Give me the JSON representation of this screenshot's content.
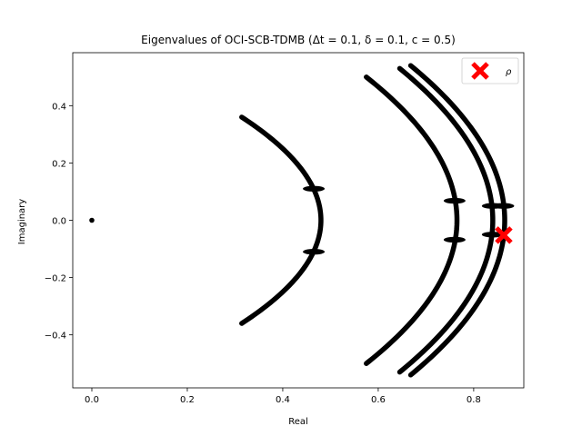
{
  "chart_data": {
    "type": "scatter",
    "title": "Eigenvalues of OCI-SCB-TDMB (Δt = 0.1, δ = 0.1, c = 0.5)",
    "xlabel": "Real",
    "ylabel": "Imaginary",
    "xlim": [
      -0.04,
      0.905
    ],
    "ylim": [
      -0.585,
      0.585
    ],
    "xticks": [
      0.0,
      0.2,
      0.4,
      0.6,
      0.8
    ],
    "xtick_labels": [
      "0.0",
      "0.2",
      "0.4",
      "0.6",
      "0.8"
    ],
    "yticks": [
      -0.4,
      -0.2,
      0.0,
      0.2,
      0.4
    ],
    "ytick_labels": [
      "−0.4",
      "−0.2",
      "0.0",
      "0.2",
      "0.4"
    ],
    "grid": false,
    "legend": {
      "position": "top-right",
      "entries": [
        {
          "label": "ρ",
          "marker": "X",
          "color": "#ff0000"
        }
      ]
    },
    "series": [
      {
        "color": "#000000",
        "points": [
          [
            0.0,
            0.0
          ],
          [
            0.314,
            0.36
          ],
          [
            0.354,
            0.326
          ],
          [
            0.392,
            0.28
          ],
          [
            0.428,
            0.22
          ],
          [
            0.456,
            0.15
          ],
          [
            0.474,
            0.075
          ],
          [
            0.48,
            0.0
          ],
          [
            0.474,
            -0.075
          ],
          [
            0.456,
            -0.15
          ],
          [
            0.428,
            -0.22
          ],
          [
            0.392,
            -0.28
          ],
          [
            0.354,
            -0.326
          ],
          [
            0.314,
            -0.36
          ],
          [
            0.575,
            0.5
          ],
          [
            0.635,
            0.43
          ],
          [
            0.69,
            0.34
          ],
          [
            0.73,
            0.24
          ],
          [
            0.755,
            0.12
          ],
          [
            0.765,
            0.0
          ],
          [
            0.755,
            -0.12
          ],
          [
            0.73,
            -0.24
          ],
          [
            0.69,
            -0.34
          ],
          [
            0.635,
            -0.43
          ],
          [
            0.575,
            -0.5
          ],
          [
            0.645,
            0.53
          ],
          [
            0.71,
            0.45
          ],
          [
            0.765,
            0.35
          ],
          [
            0.805,
            0.24
          ],
          [
            0.83,
            0.12
          ],
          [
            0.84,
            0.0
          ],
          [
            0.83,
            -0.12
          ],
          [
            0.805,
            -0.24
          ],
          [
            0.765,
            -0.35
          ],
          [
            0.71,
            -0.45
          ],
          [
            0.645,
            -0.53
          ],
          [
            0.668,
            0.54
          ],
          [
            0.735,
            0.46
          ],
          [
            0.792,
            0.36
          ],
          [
            0.832,
            0.24
          ],
          [
            0.857,
            0.12
          ],
          [
            0.865,
            0.0
          ],
          [
            0.857,
            -0.12
          ],
          [
            0.832,
            -0.24
          ],
          [
            0.792,
            -0.36
          ],
          [
            0.735,
            -0.46
          ],
          [
            0.668,
            -0.54
          ]
        ]
      },
      {
        "name": "ρ",
        "color": "#ff0000",
        "marker": "X",
        "points": [
          [
            0.863,
            -0.052
          ]
        ]
      }
    ],
    "annotations_crossings": [
      {
        "x": 0.465,
        "y": 0.11
      },
      {
        "x": 0.465,
        "y": -0.11
      },
      {
        "x": 0.76,
        "y": 0.068
      },
      {
        "x": 0.76,
        "y": -0.068
      },
      {
        "x": 0.84,
        "y": 0.05
      },
      {
        "x": 0.84,
        "y": -0.05
      },
      {
        "x": 0.862,
        "y": 0.05
      }
    ]
  }
}
